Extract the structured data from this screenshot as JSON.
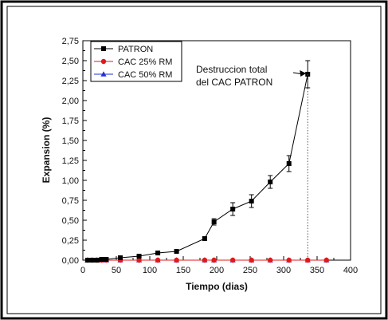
{
  "chart_data": {
    "type": "line",
    "title": "",
    "xlabel": "Tiempo (dias)",
    "ylabel": "Expansion (%)",
    "xlim": [
      0,
      400
    ],
    "ylim": [
      0,
      2.75
    ],
    "x_ticks": [
      "0",
      "50",
      "100",
      "150",
      "200",
      "250",
      "300",
      "350",
      "400"
    ],
    "y_ticks": [
      "0,00",
      "0,25",
      "0,50",
      "0,75",
      "1,00",
      "1,25",
      "1,50",
      "1,75",
      "2,00",
      "2,25",
      "2,50",
      "2,75"
    ],
    "grid": false,
    "legend_position": "top-left",
    "series": [
      {
        "name": "PATRON",
        "color": "#000000",
        "marker": "square",
        "x": [
          7,
          14,
          21,
          28,
          35,
          56,
          84,
          112,
          140,
          182,
          196,
          224,
          252,
          280,
          308,
          336
        ],
        "y": [
          0.0,
          0.0,
          0.0,
          0.01,
          0.01,
          0.03,
          0.05,
          0.09,
          0.11,
          0.27,
          0.48,
          0.64,
          0.74,
          0.98,
          1.21,
          2.33
        ],
        "error": [
          0.0,
          0.0,
          0.0,
          0.0,
          0.0,
          0.01,
          0.01,
          0.01,
          0.01,
          0.02,
          0.04,
          0.08,
          0.08,
          0.08,
          0.1,
          0.17
        ]
      },
      {
        "name": "CAC 25% RM",
        "color": "#e0191b",
        "marker": "circle",
        "x": [
          7,
          14,
          21,
          28,
          35,
          56,
          84,
          112,
          140,
          182,
          196,
          224,
          252,
          280,
          308,
          336,
          364
        ],
        "y": [
          0.0,
          0.0,
          0.0,
          0.0,
          0.0,
          0.0,
          0.0,
          0.0,
          0.0,
          0.0,
          0.0,
          0.0,
          0.0,
          0.0,
          0.0,
          0.0,
          0.0
        ]
      },
      {
        "name": "CAC 50% RM",
        "color": "#1f2fd6",
        "marker": "triangle",
        "x": [
          7,
          14,
          21,
          28,
          35,
          56,
          84,
          112,
          140,
          182,
          196,
          224,
          252,
          280,
          308,
          336,
          364
        ],
        "y": [
          0.0,
          0.0,
          0.0,
          0.0,
          0.0,
          0.0,
          0.0,
          0.0,
          0.0,
          0.0,
          0.0,
          0.0,
          0.0,
          0.0,
          0.0,
          0.0,
          0.0
        ]
      }
    ],
    "annotation": {
      "lines": [
        "Destruccion total",
        "del CAC PATRON"
      ],
      "x": 336,
      "y": 2.33
    }
  }
}
